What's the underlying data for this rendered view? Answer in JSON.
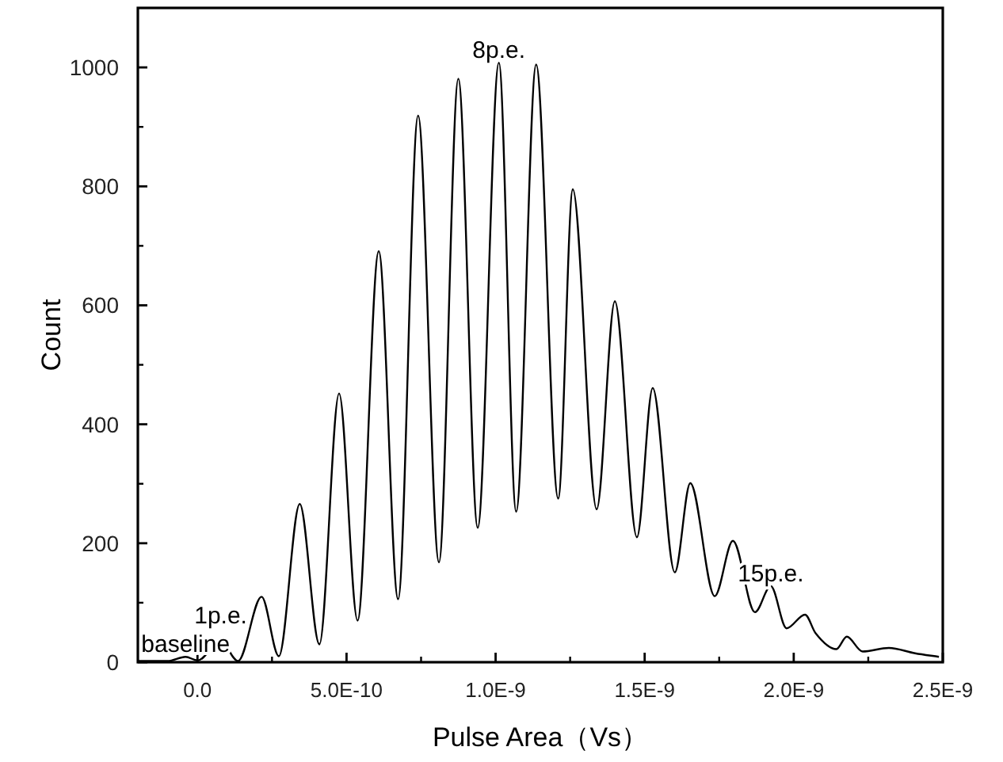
{
  "chart_data": {
    "type": "line",
    "xlabel": "Pulse Area（Vs）",
    "ylabel": "Count",
    "xlim": [
      -2e-10,
      2.5e-09
    ],
    "ylim": [
      0,
      1100
    ],
    "xticks": [
      {
        "value": 0,
        "label": "0.0"
      },
      {
        "value": 5e-10,
        "label": "5.0E-10"
      },
      {
        "value": 1e-09,
        "label": "1.0E-9"
      },
      {
        "value": 1.5e-09,
        "label": "1.5E-9"
      },
      {
        "value": 2e-09,
        "label": "2.0E-9"
      },
      {
        "value": 2.5e-09,
        "label": "2.5E-9"
      }
    ],
    "yticks": [
      0,
      200,
      400,
      600,
      800,
      1000
    ],
    "line_style": "solid",
    "series": [
      {
        "color": "#000000",
        "x": [
          -2e-10,
          -1e-10,
          -4e-11,
          0,
          7.8e-11,
          1.36e-10,
          2.15e-10,
          2.73e-10,
          3.43e-10,
          4.09e-10,
          4.75e-10,
          5.37e-10,
          6.08e-10,
          6.73e-10,
          7.4e-10,
          8.1e-10,
          8.75e-10,
          9.4e-10,
          1.011e-09,
          1.069e-09,
          1.136e-09,
          1.21e-09,
          1.259e-09,
          1.339e-09,
          1.4e-09,
          1.474e-09,
          1.527e-09,
          1.601e-09,
          1.653e-09,
          1.735e-09,
          1.796e-09,
          1.87e-09,
          1.923e-09,
          1.976e-09,
          2.038e-09,
          2.073e-09,
          2.143e-09,
          2.178e-09,
          2.231e-09,
          2.319e-09,
          2.407e-09,
          2.487e-09
        ],
        "values": [
          2,
          2,
          9,
          3,
          35,
          2,
          110,
          10,
          266,
          30,
          452,
          70,
          691,
          106,
          919,
          168,
          981,
          226,
          1008,
          253,
          1005,
          275,
          795,
          257,
          607,
          210,
          461,
          151,
          301,
          111,
          204,
          84,
          128,
          57,
          80,
          49,
          22,
          43,
          18,
          24,
          15,
          9
        ]
      }
    ],
    "annotations": [
      {
        "text": "baseline",
        "x": -4e-11,
        "y": 9
      },
      {
        "text": "1p.e.",
        "x": 7.8e-11,
        "y": 35
      },
      {
        "text": "8p.e.",
        "x": 1.011e-09,
        "y": 1008
      },
      {
        "text": "15p.e.",
        "x": 1.923e-09,
        "y": 128
      }
    ]
  }
}
